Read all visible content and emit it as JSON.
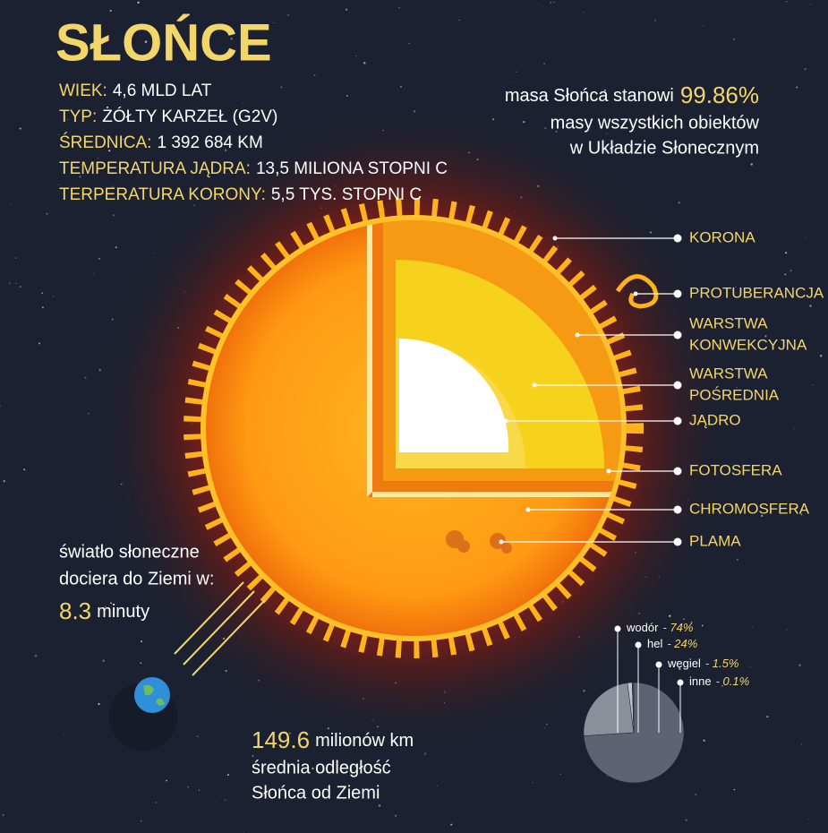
{
  "title": "SŁOŃCE",
  "facts": [
    {
      "label": "WIEK:",
      "value": "4,6 MLD LAT"
    },
    {
      "label": "TYP:",
      "value": "ŻÓŁTY KARZEŁ (G2V)"
    },
    {
      "label": "ŚREDNICA:",
      "value": "1 392 684 KM"
    },
    {
      "label": "TEMPERATURA JĄDRA:",
      "value": "13,5 MILIONA STOPNI C"
    },
    {
      "label": "TERPERATURA KORONY:",
      "value": "5,5 TYS. STOPNI C"
    }
  ],
  "mass_note": {
    "prefix": "masa Słońca stanowi",
    "highlight": "99.86%",
    "lines": [
      "masy wszystkich obiektów",
      "w Układzie Słonecznym"
    ]
  },
  "layers": [
    {
      "lines": [
        "KORONA"
      ]
    },
    {
      "lines": [
        "PROTUBERANCJA"
      ]
    },
    {
      "lines": [
        "WARSTWA",
        "KONWEKCYJNA"
      ]
    },
    {
      "lines": [
        "WARSTWA",
        "POŚREDNIA"
      ]
    },
    {
      "lines": [
        "JĄDRO"
      ]
    },
    {
      "lines": [
        "FOTOSFERA"
      ]
    },
    {
      "lines": [
        "CHROMOSFERA"
      ]
    },
    {
      "lines": [
        "PLAMA"
      ]
    }
  ],
  "light_note": {
    "lines": [
      "światło słoneczne",
      "dociera do Ziemi w:"
    ],
    "highlight": "8.3",
    "unit": "minuty"
  },
  "distance_note": {
    "highlight": "149.6",
    "unit": "milionów km",
    "lines": [
      "średnia odległość",
      "Słońca od Ziemi"
    ]
  },
  "composition": [
    {
      "name": "wodór",
      "value": 74,
      "label": "- 74%"
    },
    {
      "name": "hel",
      "value": 24,
      "label": "- 24%"
    },
    {
      "name": "węgiel",
      "value": 1.5,
      "label": "- 1.5%"
    },
    {
      "name": "inne",
      "value": 0.1,
      "label": "- 0.1%"
    }
  ]
}
